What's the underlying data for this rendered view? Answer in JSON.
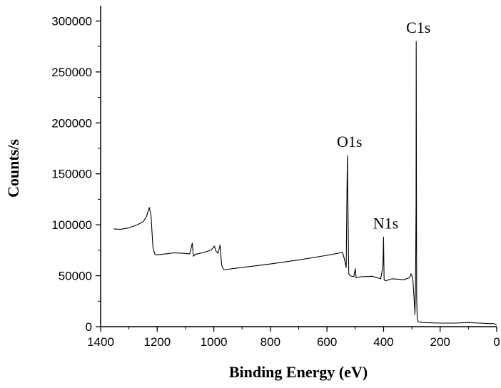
{
  "chart_data": {
    "type": "line",
    "title": "",
    "xlabel": "Binding Energy (eV)",
    "ylabel": "Counts/s",
    "xlim": [
      1400,
      0
    ],
    "ylim": [
      0,
      315000
    ],
    "x_reversed": true,
    "grid": false,
    "legend": "none",
    "xticks": [
      1400,
      1200,
      1000,
      800,
      600,
      400,
      200,
      0
    ],
    "yticks": [
      0,
      50000,
      100000,
      150000,
      200000,
      250000,
      300000
    ],
    "xtick_labels": [
      "1400",
      "1200",
      "1000",
      "800",
      "600",
      "400",
      "200",
      "0"
    ],
    "ytick_labels": [
      "0",
      "50000",
      "100000",
      "150000",
      "200000",
      "250000",
      "300000"
    ],
    "series": [
      {
        "color": "#000000",
        "x": [
          1354,
          1330,
          1300,
          1270,
          1250,
          1238,
          1228,
          1222,
          1215,
          1208,
          1200,
          1170,
          1140,
          1110,
          1085,
          1076,
          1072,
          1066,
          1040,
          1010,
          998,
          992,
          985,
          978,
          972,
          966,
          960,
          900,
          800,
          700,
          600,
          560,
          545,
          538,
          532,
          528,
          523,
          518,
          505,
          500,
          497,
          480,
          440,
          410,
          402,
          400,
          398,
          393,
          370,
          345,
          330,
          308,
          303,
          297,
          292,
          289,
          287,
          285,
          284.5,
          283,
          281,
          278,
          260,
          200,
          150,
          100,
          60,
          30,
          10,
          0
        ],
        "values": [
          96000,
          95500,
          97000,
          100000,
          103000,
          108000,
          117000,
          109000,
          78000,
          71000,
          70500,
          71500,
          72500,
          72000,
          71500,
          82000,
          69000,
          71000,
          72500,
          75000,
          79000,
          74000,
          72000,
          80000,
          60000,
          56000,
          56000,
          58000,
          61500,
          65500,
          70000,
          72000,
          73000,
          66000,
          58000,
          168000,
          52000,
          50000,
          49000,
          57000,
          48000,
          49000,
          49500,
          47000,
          60000,
          88000,
          46000,
          45000,
          47000,
          46500,
          46000,
          48000,
          52000,
          48000,
          28000,
          12000,
          40000,
          120000,
          280000,
          30000,
          8000,
          5000,
          4000,
          3500,
          3500,
          4000,
          3500,
          3000,
          3000,
          1500
        ]
      }
    ],
    "annotations": [
      {
        "text": "C1s",
        "x": 284.5,
        "y": 280000
      },
      {
        "text": "O1s",
        "x": 528,
        "y": 168000
      },
      {
        "text": "N1s",
        "x": 400,
        "y": 88000
      }
    ]
  }
}
